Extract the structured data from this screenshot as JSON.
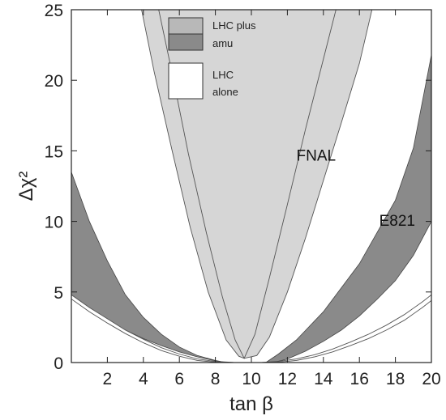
{
  "chart_data": {
    "type": "area",
    "xlabel": "tan β",
    "ylabel": "Δχ²",
    "xlim": [
      0,
      20
    ],
    "ylim": [
      0,
      25
    ],
    "xticks": [
      2,
      4,
      6,
      8,
      10,
      12,
      14,
      16,
      18,
      20
    ],
    "yticks": [
      0,
      5,
      10,
      15,
      20,
      25
    ],
    "grid": false,
    "legend_position": "top-center",
    "legend": [
      {
        "label_line1": "LHC plus",
        "label_line2": "amu"
      },
      {
        "label_line1": "LHC",
        "label_line2": "alone"
      }
    ],
    "bands": [
      {
        "name": "FNAL",
        "color": "#d6d6d6",
        "x_left": [
          3.9,
          4.5,
          5.5,
          6.5,
          7.5,
          8.5,
          9.2,
          9.6
        ],
        "x_right": [
          16.7,
          16.0,
          15.0,
          14.0,
          13.0,
          12.0,
          11.0,
          10.2,
          9.6
        ],
        "y_left": [
          25,
          21.5,
          15.5,
          10,
          5.6,
          2.0,
          0.5,
          0.3
        ],
        "y_right": [
          25,
          21.5,
          16,
          11,
          7,
          4,
          1.5,
          0.4,
          0.3
        ]
      },
      {
        "name": "E821",
        "color": "#8a8a8a",
        "left_outer": {
          "x": [
            0,
            1,
            2,
            3,
            4,
            5,
            6,
            7,
            8,
            8.6
          ],
          "y": [
            13.5,
            10.0,
            7.2,
            4.8,
            3.2,
            2.0,
            1.1,
            0.5,
            0.15,
            0
          ]
        },
        "left_inner": {
          "x": [
            0,
            1,
            2,
            3,
            4,
            5,
            6,
            7,
            8,
            8.6
          ],
          "y": [
            4.6,
            3.8,
            3.0,
            2.3,
            1.7,
            1.2,
            0.75,
            0.4,
            0.12,
            0
          ]
        },
        "right_outer": {
          "x": [
            10.8,
            11.5,
            12.5,
            14,
            16,
            18,
            19,
            20
          ],
          "y": [
            0,
            0.6,
            1.6,
            3.6,
            7.0,
            11.5,
            15.2,
            21.8
          ]
        },
        "right_inner": {
          "x": [
            11.2,
            12,
            13,
            14,
            15,
            16,
            17,
            18,
            19,
            20
          ],
          "y": [
            0,
            0.25,
            0.8,
            1.5,
            2.3,
            3.3,
            4.5,
            5.8,
            7.6,
            10.0
          ]
        }
      },
      {
        "name": "LHC alone",
        "color": "#ffffff",
        "x": [
          0,
          1,
          2,
          3,
          4,
          5,
          6,
          7,
          8,
          9,
          9.8,
          10.6,
          11.5,
          12.5,
          13.5,
          14.5,
          15.5,
          16.5,
          17.5,
          18.5,
          19.5,
          20
        ],
        "y_upper": [
          4.8,
          3.9,
          3.1,
          2.3,
          1.65,
          1.05,
          0.6,
          0.25,
          0.08,
          0.01,
          0,
          0.01,
          0.08,
          0.25,
          0.55,
          0.95,
          1.45,
          2.0,
          2.65,
          3.4,
          4.3,
          4.8
        ],
        "y_lower": [
          4.5,
          3.6,
          2.8,
          2.05,
          1.4,
          0.85,
          0.45,
          0.15,
          0.03,
          0,
          0,
          0,
          0.03,
          0.15,
          0.4,
          0.75,
          1.2,
          1.7,
          2.3,
          3.0,
          3.9,
          4.4
        ]
      }
    ],
    "annotations": [
      {
        "text": "FNAL",
        "x": 12.5,
        "y": 14.3
      },
      {
        "text": "E821",
        "x": 17.1,
        "y": 9.7
      }
    ]
  }
}
